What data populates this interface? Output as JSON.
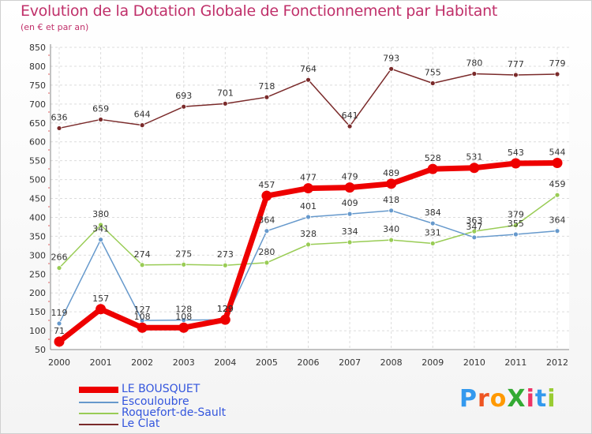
{
  "header": {
    "title": "Evolution de la Dotation Globale de Fonctionnement par Habitant",
    "subtitle": "(en € et par an)"
  },
  "chart_data": {
    "type": "line",
    "title": "Evolution de la Dotation Globale de Fonctionnement par Habitant",
    "subtitle": "(en € et par an)",
    "xlabel": "",
    "ylabel": "",
    "ylim": [
      50,
      850
    ],
    "yticks": [
      50,
      100,
      150,
      200,
      250,
      300,
      350,
      400,
      450,
      500,
      550,
      600,
      650,
      700,
      750,
      800,
      850
    ],
    "x": [
      "2000",
      "2001",
      "2002",
      "2003",
      "2004",
      "2005",
      "2006",
      "2007",
      "2008",
      "2009",
      "2010",
      "2011",
      "2012"
    ],
    "grid": true,
    "legend_position": "bottom-left",
    "series": [
      {
        "name": "Le Clat",
        "color": "#7a2a2a",
        "values": [
          636,
          659,
          644,
          693,
          701,
          718,
          764,
          641,
          793,
          755,
          780,
          777,
          779
        ]
      },
      {
        "name": "Roquefort-de-Sault",
        "color": "#99cc55",
        "values": [
          266,
          380,
          274,
          275,
          273,
          280,
          328,
          334,
          340,
          331,
          363,
          379,
          459
        ]
      },
      {
        "name": "Escouloubre",
        "color": "#6699cc",
        "values": [
          119,
          341,
          127,
          128,
          129,
          364,
          401,
          409,
          418,
          384,
          347,
          355,
          364
        ]
      },
      {
        "name": "LE BOUSQUET",
        "color": "#ee0000",
        "values": [
          71,
          157,
          108,
          108,
          129,
          457,
          477,
          479,
          489,
          528,
          531,
          543,
          544
        ]
      }
    ]
  },
  "legend": {
    "items": [
      {
        "label": "LE BOUSQUET",
        "color": "#ee0000"
      },
      {
        "label": "Escouloubre",
        "color": "#6699cc"
      },
      {
        "label": "Roquefort-de-Sault",
        "color": "#99cc55"
      },
      {
        "label": "Le Clat",
        "color": "#7a2a2a"
      }
    ]
  },
  "branding": {
    "logo_text": "ProXiti"
  }
}
